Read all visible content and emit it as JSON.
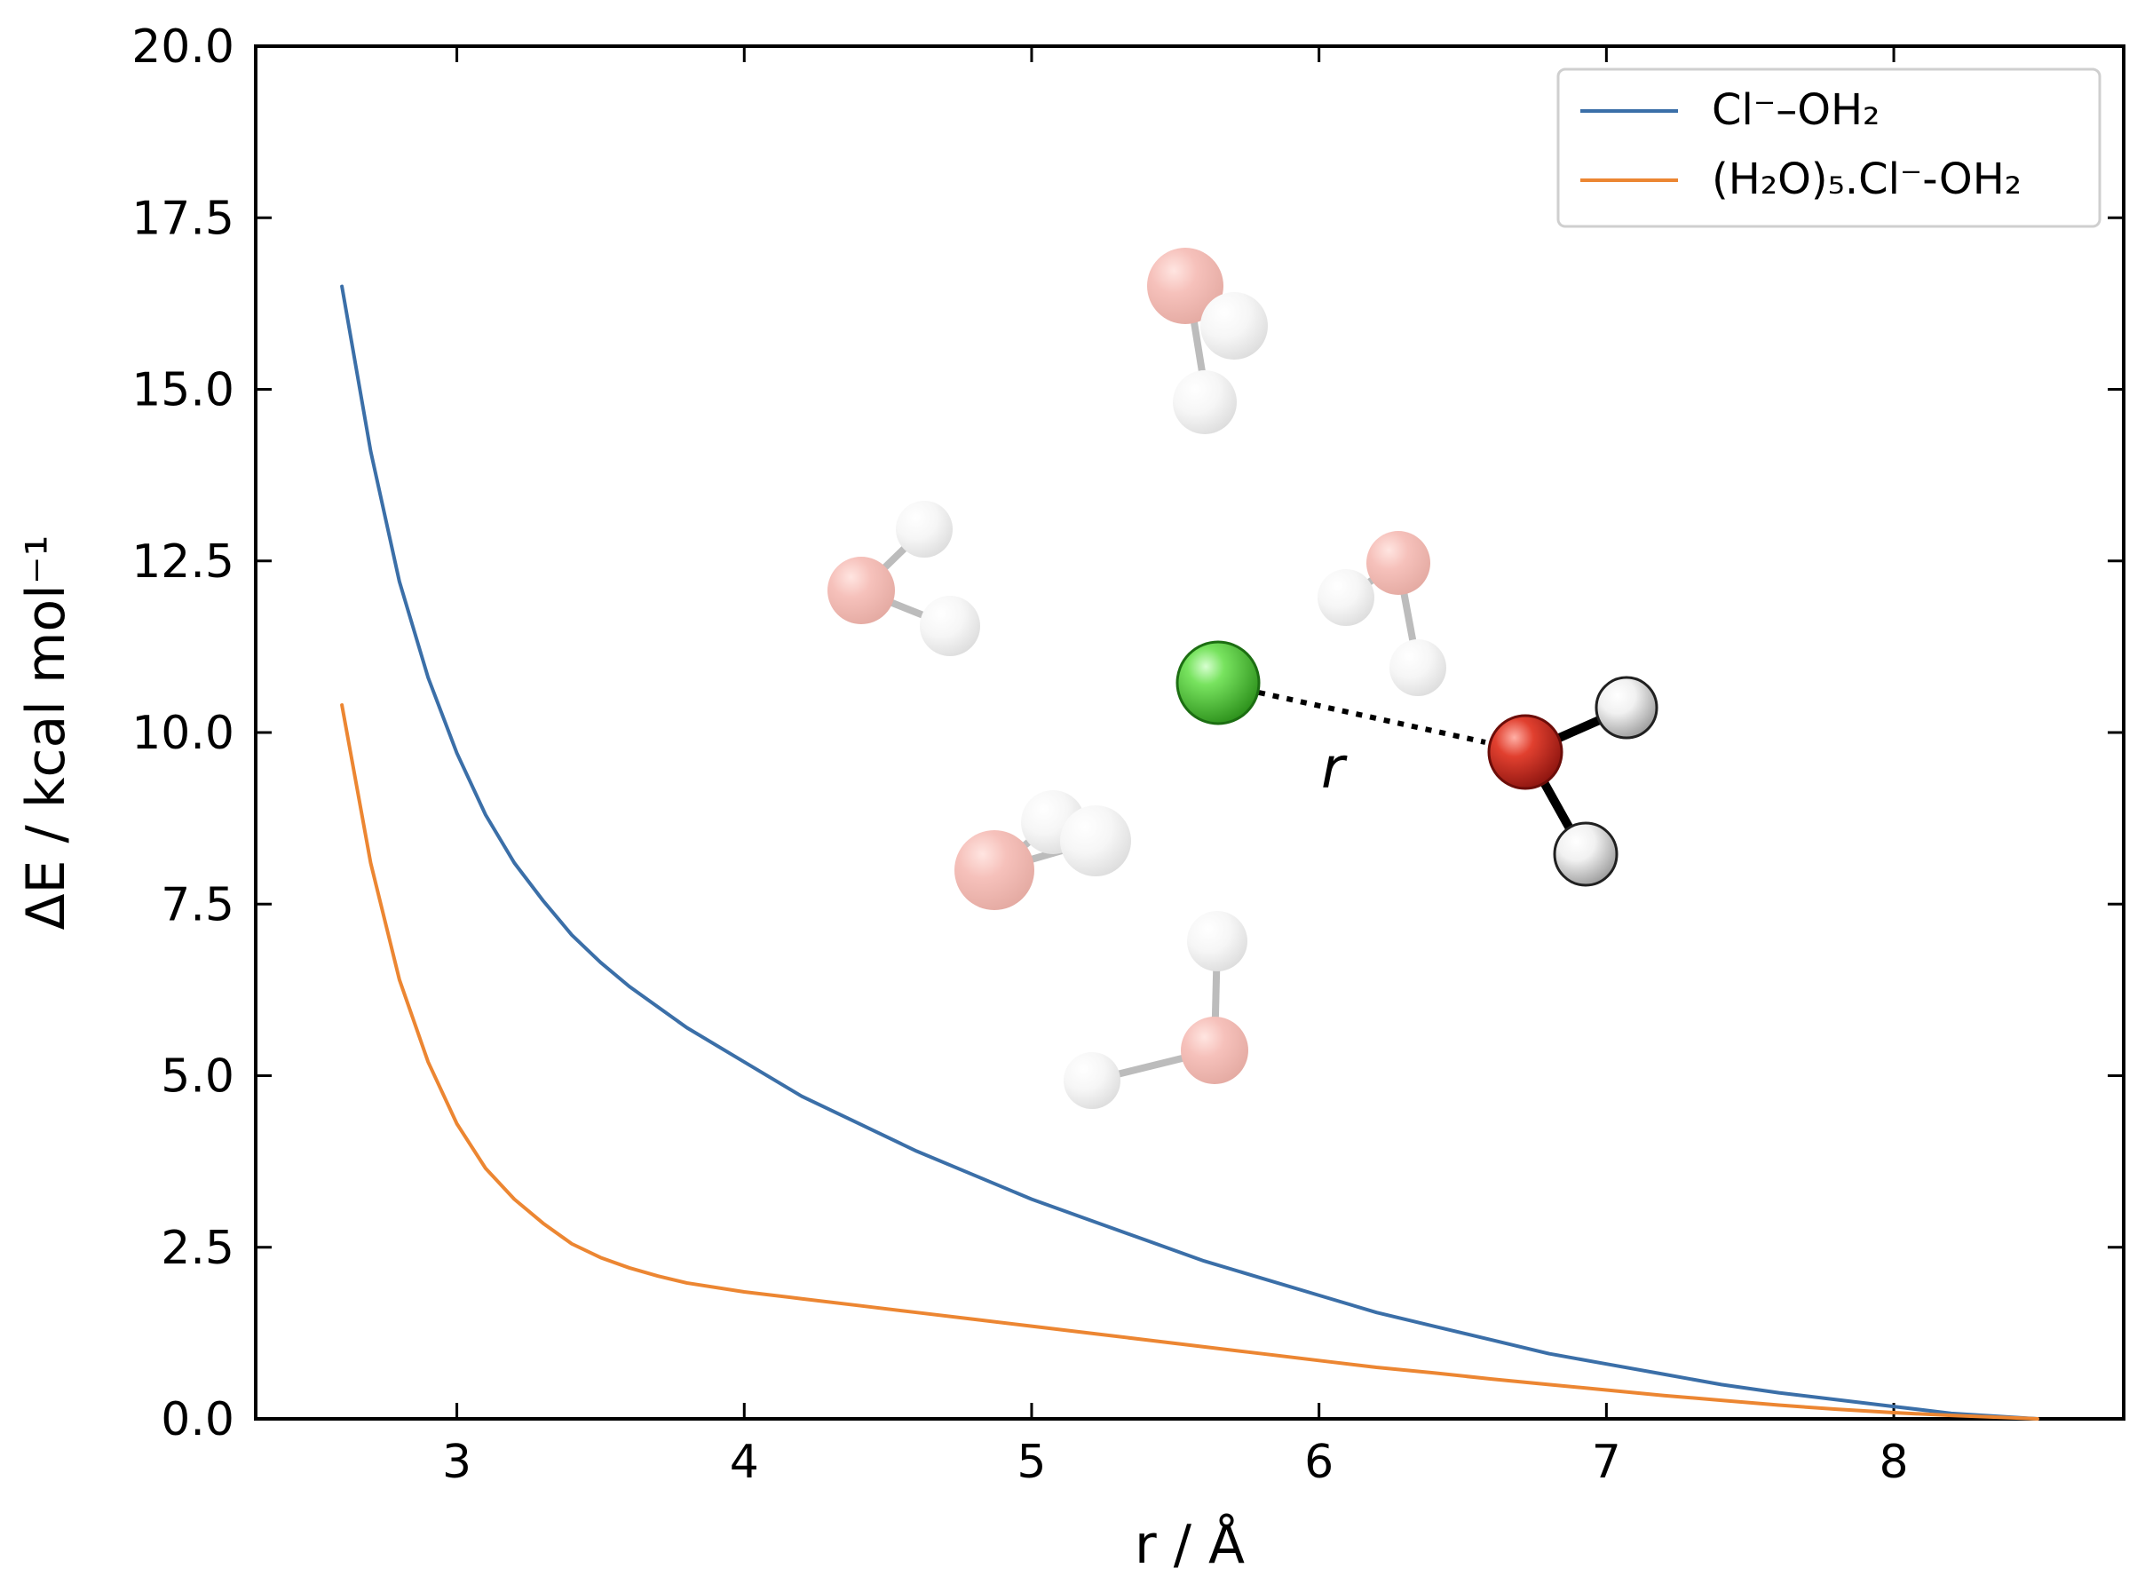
{
  "chart_data": {
    "type": "line",
    "xlabel": "r / Å",
    "ylabel": "ΔE / kcal mol⁻¹",
    "xlim": [
      2.3,
      8.8
    ],
    "ylim": [
      0.0,
      20.0
    ],
    "x_ticks": [
      3,
      4,
      5,
      6,
      7,
      8
    ],
    "y_ticks": [
      0.0,
      2.5,
      5.0,
      7.5,
      10.0,
      12.5,
      15.0,
      17.5,
      20.0
    ],
    "x_tick_labels": [
      "3",
      "4",
      "5",
      "6",
      "7",
      "8"
    ],
    "y_tick_labels": [
      "0.0",
      "2.5",
      "5.0",
      "7.5",
      "10.0",
      "12.5",
      "15.0",
      "17.5",
      "20.0"
    ],
    "grid": false,
    "legend_position": "top-right",
    "series": [
      {
        "name": "Cl⁻–OH₂",
        "color": "#3b6fa8",
        "points": [
          [
            2.6,
            16.5
          ],
          [
            2.7,
            14.1
          ],
          [
            2.8,
            12.2
          ],
          [
            2.9,
            10.8
          ],
          [
            3.0,
            9.7
          ],
          [
            3.1,
            8.8
          ],
          [
            3.2,
            8.1
          ],
          [
            3.3,
            7.55
          ],
          [
            3.4,
            7.05
          ],
          [
            3.5,
            6.65
          ],
          [
            3.6,
            6.3
          ],
          [
            3.8,
            5.7
          ],
          [
            4.0,
            5.2
          ],
          [
            4.2,
            4.7
          ],
          [
            4.4,
            4.3
          ],
          [
            4.6,
            3.9
          ],
          [
            4.8,
            3.55
          ],
          [
            5.0,
            3.2
          ],
          [
            5.2,
            2.9
          ],
          [
            5.4,
            2.6
          ],
          [
            5.6,
            2.3
          ],
          [
            5.8,
            2.05
          ],
          [
            6.0,
            1.8
          ],
          [
            6.2,
            1.55
          ],
          [
            6.4,
            1.35
          ],
          [
            6.6,
            1.15
          ],
          [
            6.8,
            0.95
          ],
          [
            7.0,
            0.8
          ],
          [
            7.2,
            0.65
          ],
          [
            7.4,
            0.5
          ],
          [
            7.6,
            0.38
          ],
          [
            7.8,
            0.28
          ],
          [
            8.0,
            0.18
          ],
          [
            8.2,
            0.08
          ],
          [
            8.5,
            0.0
          ]
        ]
      },
      {
        "name": "(H₂O)₅.Cl⁻-OH₂",
        "color": "#ec8632",
        "points": [
          [
            2.6,
            10.4
          ],
          [
            2.7,
            8.1
          ],
          [
            2.8,
            6.4
          ],
          [
            2.9,
            5.2
          ],
          [
            3.0,
            4.3
          ],
          [
            3.1,
            3.65
          ],
          [
            3.2,
            3.2
          ],
          [
            3.3,
            2.85
          ],
          [
            3.4,
            2.55
          ],
          [
            3.5,
            2.35
          ],
          [
            3.6,
            2.2
          ],
          [
            3.7,
            2.08
          ],
          [
            3.8,
            1.98
          ],
          [
            4.0,
            1.85
          ],
          [
            4.2,
            1.75
          ],
          [
            4.4,
            1.65
          ],
          [
            4.6,
            1.55
          ],
          [
            4.8,
            1.45
          ],
          [
            5.0,
            1.35
          ],
          [
            5.2,
            1.25
          ],
          [
            5.4,
            1.15
          ],
          [
            5.6,
            1.05
          ],
          [
            5.8,
            0.95
          ],
          [
            6.0,
            0.85
          ],
          [
            6.2,
            0.75
          ],
          [
            6.4,
            0.67
          ],
          [
            6.6,
            0.58
          ],
          [
            6.8,
            0.5
          ],
          [
            7.0,
            0.42
          ],
          [
            7.2,
            0.34
          ],
          [
            7.4,
            0.27
          ],
          [
            7.6,
            0.2
          ],
          [
            7.8,
            0.14
          ],
          [
            8.0,
            0.09
          ],
          [
            8.2,
            0.05
          ],
          [
            8.5,
            0.0
          ]
        ]
      }
    ],
    "annotations": [
      {
        "text": "r",
        "kind": "distance-label"
      }
    ],
    "inset": {
      "description_colors": {
        "chlorine": "#42b82c",
        "oxygen": "#d92b1f",
        "hydrogen": "#f4f4f4",
        "faded_oxygen": "#f2b8b2",
        "faded_hydrogen": "#f4f4f4"
      }
    }
  }
}
